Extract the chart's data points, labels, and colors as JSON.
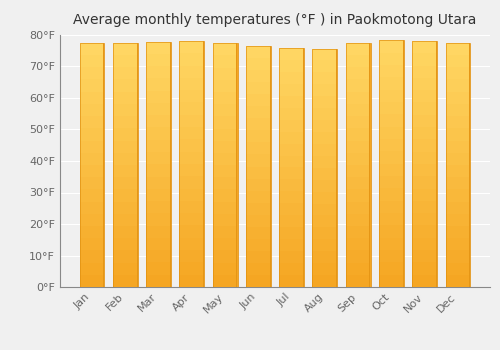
{
  "title": "Average monthly temperatures (°F ) in Paokmotong Utara",
  "months": [
    "Jan",
    "Feb",
    "Mar",
    "Apr",
    "May",
    "Jun",
    "Jul",
    "Aug",
    "Sep",
    "Oct",
    "Nov",
    "Dec"
  ],
  "temperatures": [
    77.5,
    77.5,
    77.9,
    78.1,
    77.4,
    76.5,
    75.9,
    75.7,
    77.5,
    78.3,
    78.1,
    77.5
  ],
  "bar_color_top": "#FFD966",
  "bar_color_bottom": "#F5A623",
  "bar_edge_color": "#E09010",
  "ylim": [
    0,
    80
  ],
  "yticks": [
    0,
    10,
    20,
    30,
    40,
    50,
    60,
    70,
    80
  ],
  "ytick_labels": [
    "0°F",
    "10°F",
    "20°F",
    "30°F",
    "40°F",
    "50°F",
    "60°F",
    "70°F",
    "80°F"
  ],
  "background_color": "#f0f0f0",
  "grid_color": "#ffffff",
  "title_fontsize": 10,
  "tick_fontsize": 8,
  "bar_width": 0.75
}
